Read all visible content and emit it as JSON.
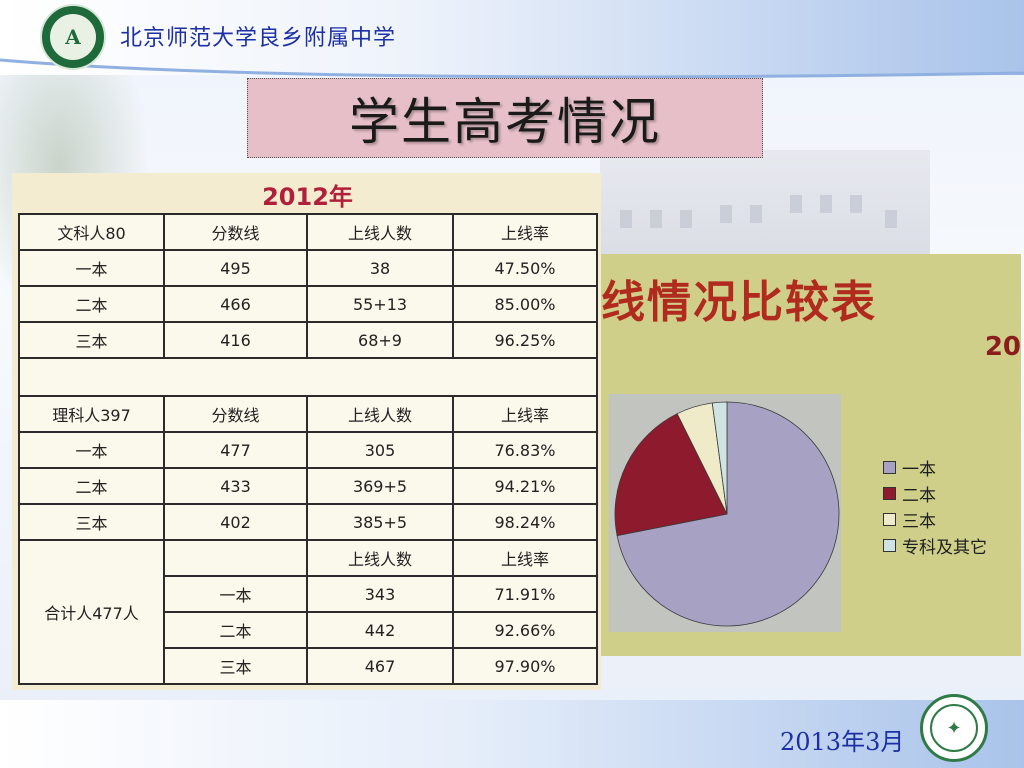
{
  "header": {
    "school_name": "北京师范大学良乡附属中学",
    "slide_title": "学生高考情况"
  },
  "table": {
    "year": "2012年",
    "liberal": {
      "group": "文科人80",
      "headers": [
        "分数线",
        "上线人数",
        "上线率"
      ],
      "rows": [
        {
          "tier": "一本",
          "cutoff": "495",
          "count": "38",
          "rate": "47.50%"
        },
        {
          "tier": "二本",
          "cutoff": "466",
          "count": "55+13",
          "rate": "85.00%"
        },
        {
          "tier": "三本",
          "cutoff": "416",
          "count": "68+9",
          "rate": "96.25%"
        }
      ]
    },
    "science": {
      "group": "理科人397",
      "headers": [
        "分数线",
        "上线人数",
        "上线率"
      ],
      "rows": [
        {
          "tier": "一本",
          "cutoff": "477",
          "count": "305",
          "rate": "76.83%"
        },
        {
          "tier": "二本",
          "cutoff": "433",
          "count": "369+5",
          "rate": "94.21%"
        },
        {
          "tier": "三本",
          "cutoff": "402",
          "count": "385+5",
          "rate": "98.24%"
        }
      ]
    },
    "total": {
      "group": "合计人477人",
      "headers": [
        "上线人数",
        "上线率"
      ],
      "rows": [
        {
          "tier": "一本",
          "count": "343",
          "rate": "71.91%"
        },
        {
          "tier": "二本",
          "count": "442",
          "rate": "92.66%"
        },
        {
          "tier": "三本",
          "count": "467",
          "rate": "97.90%"
        }
      ]
    }
  },
  "pie": {
    "title_fragment": "线情况比较表",
    "year_fragment": "20",
    "legend": [
      "一本",
      "二本",
      "三本",
      "专科及其它"
    ],
    "colors": [
      "#a7a2c4",
      "#8e1a2e",
      "#efeac8",
      "#cfe4e2"
    ]
  },
  "chart_data": {
    "type": "pie",
    "categories": [
      "一本",
      "二本",
      "三本",
      "专科及其它"
    ],
    "values": [
      71.91,
      20.75,
      5.24,
      2.1
    ]
  },
  "footer": {
    "date": "2013年3月"
  }
}
